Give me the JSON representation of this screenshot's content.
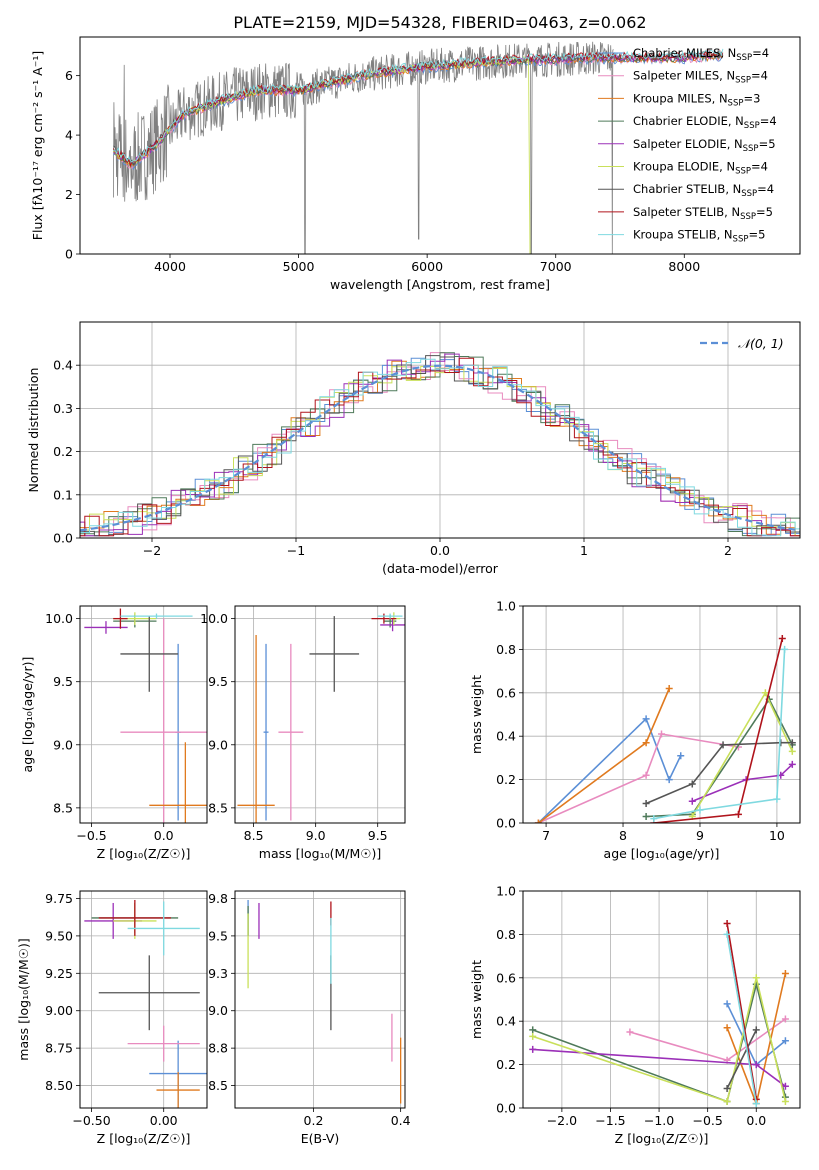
{
  "figure_title": "PLATE=2159, MJD=54328, FIBERID=0463, z=0.062",
  "colors": {
    "grid": "#b0b0b0",
    "spectrum": "#808080",
    "gauss": "#5b8fd6"
  },
  "models": [
    {
      "name": "Chabrier MILES",
      "n": "4",
      "color": "#5b8fd6"
    },
    {
      "name": "Salpeter MILES",
      "n": "4",
      "color": "#e88bbf"
    },
    {
      "name": "Kroupa MILES",
      "n": "3",
      "color": "#e07a1f"
    },
    {
      "name": "Chabrier ELODIE",
      "n": "4",
      "color": "#4f7a5a"
    },
    {
      "name": "Salpeter ELODIE",
      "n": "5",
      "color": "#9b30b8"
    },
    {
      "name": "Kroupa ELODIE",
      "n": "4",
      "color": "#c9e05a"
    },
    {
      "name": "Chabrier STELIB",
      "n": "4",
      "color": "#555555"
    },
    {
      "name": "Salpeter STELIB",
      "n": "5",
      "color": "#b0141c"
    },
    {
      "name": "Kroupa STELIB",
      "n": "5",
      "color": "#7fd9e0"
    }
  ],
  "chart_data": [
    {
      "type": "line",
      "id": "spectrum",
      "title": "PLATE=2159, MJD=54328, FIBERID=0463, z=0.062",
      "xlabel": "wavelength [Angstrom, rest frame]",
      "ylabel": "Flux [fλ10⁻¹⁷ erg cm⁻² s⁻¹ A⁻¹]",
      "xlim": [
        3300,
        8900
      ],
      "ylim": [
        0,
        7.3
      ],
      "xticks": [
        4000,
        5000,
        6000,
        7000,
        8000
      ],
      "yticks": [
        0,
        2,
        4,
        6
      ],
      "grid": false,
      "legend": "upper right",
      "continuum_points": [
        [
          3560,
          3.5
        ],
        [
          3700,
          3.0
        ],
        [
          3900,
          3.7
        ],
        [
          4100,
          4.7
        ],
        [
          4300,
          5.0
        ],
        [
          4500,
          5.3
        ],
        [
          4700,
          5.5
        ],
        [
          5000,
          5.5
        ],
        [
          5200,
          5.7
        ],
        [
          5500,
          6.0
        ],
        [
          5800,
          6.2
        ],
        [
          6000,
          6.3
        ],
        [
          6300,
          6.4
        ],
        [
          6600,
          6.5
        ],
        [
          7000,
          6.55
        ],
        [
          7300,
          6.6
        ],
        [
          7500,
          6.6
        ],
        [
          8000,
          6.6
        ],
        [
          8300,
          6.7
        ]
      ],
      "absorption_lines": [
        [
          5050,
          0
        ],
        [
          5935,
          0.5
        ],
        [
          6810,
          0
        ],
        [
          7440,
          0
        ]
      ]
    },
    {
      "type": "line",
      "id": "residuals",
      "xlabel": "(data-model)/error",
      "ylabel": "Normed distribution",
      "xlim": [
        -2.5,
        2.5
      ],
      "ylim": [
        0,
        0.5
      ],
      "xticks": [
        -2,
        -1,
        0,
        1,
        2
      ],
      "yticks": [
        0.0,
        0.1,
        0.2,
        0.3,
        0.4
      ],
      "grid": true,
      "legend": "upper right",
      "legend_label": "𝒩(0, 1)"
    },
    {
      "type": "scatter",
      "id": "age-vs-Z",
      "xlabel": "Z [log₁₀(Z/Z☉)]",
      "ylabel": "age  [log₁₀(age/yr)]",
      "xlim": [
        -0.58,
        0.3
      ],
      "ylim": [
        8.38,
        10.1
      ],
      "xticks": [
        -0.5,
        0.0
      ],
      "yticks": [
        8.5,
        9.0,
        9.5,
        10.0
      ],
      "grid": true,
      "points": [
        {
          "model": 0,
          "x": 0.1,
          "y": 9.1,
          "xerr": 0.02,
          "yerr": 0.7
        },
        {
          "model": 1,
          "x": 0.0,
          "y": 9.1,
          "xerr": 0.3,
          "yerr": 0.9
        },
        {
          "model": 2,
          "x": 0.15,
          "y": 8.52,
          "xerr": 0.25,
          "yerr": 0.5
        },
        {
          "model": 3,
          "x": -0.2,
          "y": 9.98,
          "xerr": 0.15,
          "yerr": 0.05
        },
        {
          "model": 4,
          "x": -0.4,
          "y": 9.93,
          "xerr": 0.15,
          "yerr": 0.05
        },
        {
          "model": 5,
          "x": -0.2,
          "y": 10.0,
          "xerr": 0.15,
          "yerr": 0.05
        },
        {
          "model": 6,
          "x": -0.1,
          "y": 9.72,
          "xerr": 0.2,
          "yerr": 0.3
        },
        {
          "model": 7,
          "x": -0.3,
          "y": 10.0,
          "xerr": 0.05,
          "yerr": 0.08
        },
        {
          "model": 8,
          "x": -0.05,
          "y": 10.02,
          "xerr": 0.25,
          "yerr": 0.02
        }
      ]
    },
    {
      "type": "scatter",
      "id": "age-vs-mass",
      "xlabel": "mass [log₁₀(M/M☉)]",
      "xlim": [
        8.35,
        9.72
      ],
      "ylim": [
        8.38,
        10.1
      ],
      "xticks": [
        8.5,
        9.0,
        9.5
      ],
      "yticks": [
        8.5,
        9.0,
        9.5,
        10.0
      ],
      "grid": true,
      "points": [
        {
          "model": 0,
          "x": 8.6,
          "y": 9.1,
          "xerr": 0.02,
          "yerr": 0.7
        },
        {
          "model": 1,
          "x": 8.8,
          "y": 9.1,
          "xerr": 0.1,
          "yerr": 0.7
        },
        {
          "model": 2,
          "x": 8.52,
          "y": 8.52,
          "xerr": 0.15,
          "yerr": 1.35
        },
        {
          "model": 3,
          "x": 9.6,
          "y": 9.98,
          "xerr": 0.05,
          "yerr": 0.05
        },
        {
          "model": 4,
          "x": 9.62,
          "y": 9.95,
          "xerr": 0.1,
          "yerr": 0.05
        },
        {
          "model": 5,
          "x": 9.63,
          "y": 10.0,
          "xerr": 0.05,
          "yerr": 0.05
        },
        {
          "model": 6,
          "x": 9.15,
          "y": 9.72,
          "xerr": 0.2,
          "yerr": 0.3
        },
        {
          "model": 7,
          "x": 9.55,
          "y": 10.0,
          "xerr": 0.1,
          "yerr": 0.04
        },
        {
          "model": 8,
          "x": 9.6,
          "y": 10.02,
          "xerr": 0.1,
          "yerr": 0.02
        }
      ]
    },
    {
      "type": "line",
      "id": "mass-weight-vs-age",
      "xlabel": "age  [log₁₀(age/yr)]",
      "ylabel": "mass weight",
      "xlim": [
        6.7,
        10.3
      ],
      "ylim": [
        0,
        1.0
      ],
      "xticks": [
        7,
        8,
        9,
        10
      ],
      "yticks": [
        0.0,
        0.2,
        0.4,
        0.6,
        0.8,
        1.0
      ],
      "grid": true,
      "series": [
        {
          "model": 0,
          "x": [
            6.9,
            8.3,
            8.6,
            8.75
          ],
          "y": [
            0.0,
            0.48,
            0.2,
            0.31
          ]
        },
        {
          "model": 1,
          "x": [
            6.9,
            8.3,
            8.5,
            9.5
          ],
          "y": [
            0.0,
            0.22,
            0.41,
            0.35
          ]
        },
        {
          "model": 2,
          "x": [
            6.9,
            8.3,
            8.6
          ],
          "y": [
            0.0,
            0.37,
            0.62
          ]
        },
        {
          "model": 3,
          "x": [
            8.3,
            8.9,
            9.9,
            10.2
          ],
          "y": [
            0.03,
            0.04,
            0.57,
            0.36
          ]
        },
        {
          "model": 4,
          "x": [
            8.9,
            9.6,
            10.05,
            10.2
          ],
          "y": [
            0.1,
            0.2,
            0.22,
            0.27
          ]
        },
        {
          "model": 5,
          "x": [
            8.9,
            9.85,
            10.2
          ],
          "y": [
            0.03,
            0.6,
            0.33
          ]
        },
        {
          "model": 6,
          "x": [
            8.3,
            8.9,
            9.3,
            10.05,
            10.2
          ],
          "y": [
            0.09,
            0.18,
            0.36,
            0.37,
            0.37
          ]
        },
        {
          "model": 7,
          "x": [
            8.4,
            9.5,
            10.07
          ],
          "y": [
            0.0,
            0.04,
            0.85
          ]
        },
        {
          "model": 8,
          "x": [
            8.4,
            9.0,
            10.0,
            10.1
          ],
          "y": [
            0.02,
            0.06,
            0.11,
            0.8
          ]
        }
      ]
    },
    {
      "type": "scatter",
      "id": "mass-vs-Z",
      "xlabel": "Z [log₁₀(Z/Z☉)]",
      "ylabel": "mass [log₁₀(M/M☉)]",
      "xlim": [
        -0.58,
        0.3
      ],
      "ylim": [
        8.35,
        9.8
      ],
      "xticks": [
        -0.5,
        0.0
      ],
      "yticks": [
        8.5,
        8.75,
        9.0,
        9.25,
        9.5,
        9.75
      ],
      "grid": true,
      "points": [
        {
          "model": 0,
          "x": 0.1,
          "y": 8.58,
          "xerr": 0.2,
          "yerr": 0.22
        },
        {
          "model": 1,
          "x": 0.0,
          "y": 8.78,
          "xerr": 0.25,
          "yerr": 0.12
        },
        {
          "model": 2,
          "x": 0.1,
          "y": 8.47,
          "xerr": 0.15,
          "yerr": 0.12
        },
        {
          "model": 3,
          "x": -0.2,
          "y": 9.62,
          "xerr": 0.3,
          "yerr": 0.1
        },
        {
          "model": 4,
          "x": -0.35,
          "y": 9.6,
          "xerr": 0.2,
          "yerr": 0.12
        },
        {
          "model": 5,
          "x": -0.2,
          "y": 9.6,
          "xerr": 0.15,
          "yerr": 0.12
        },
        {
          "model": 6,
          "x": -0.1,
          "y": 9.12,
          "xerr": 0.35,
          "yerr": 0.25
        },
        {
          "model": 7,
          "x": -0.2,
          "y": 9.62,
          "xerr": 0.25,
          "yerr": 0.12
        },
        {
          "model": 8,
          "x": 0.0,
          "y": 9.55,
          "xerr": 0.25,
          "yerr": 0.18
        }
      ]
    },
    {
      "type": "scatter",
      "id": "mass-vs-EBV",
      "xlabel": "E(B-V)",
      "xlim": [
        0.02,
        0.41
      ],
      "ylim": [
        8.35,
        9.8
      ],
      "xticks": [
        0.2,
        0.4
      ],
      "yticks": [
        8.5,
        8.75,
        9.0,
        9.25,
        9.5,
        9.75
      ],
      "grid": true,
      "points": [
        {
          "model": 0,
          "x": 0.05,
          "y": 9.62,
          "xerr": 0.0,
          "yerr": 0.12
        },
        {
          "model": 1,
          "x": 0.38,
          "y": 8.82,
          "xerr": 0.0,
          "yerr": 0.16
        },
        {
          "model": 2,
          "x": 0.4,
          "y": 8.6,
          "xerr": 0.0,
          "yerr": 0.22
        },
        {
          "model": 3,
          "x": 0.05,
          "y": 9.6,
          "xerr": 0.0,
          "yerr": 0.1
        },
        {
          "model": 4,
          "x": 0.075,
          "y": 9.6,
          "xerr": 0.0,
          "yerr": 0.12
        },
        {
          "model": 5,
          "x": 0.05,
          "y": 9.4,
          "xerr": 0.0,
          "yerr": 0.25
        },
        {
          "model": 6,
          "x": 0.24,
          "y": 9.12,
          "xerr": 0.0,
          "yerr": 0.25
        },
        {
          "model": 7,
          "x": 0.24,
          "y": 9.65,
          "xerr": 0.0,
          "yerr": 0.08
        },
        {
          "model": 8,
          "x": 0.24,
          "y": 9.4,
          "xerr": 0.0,
          "yerr": 0.22
        }
      ]
    },
    {
      "type": "line",
      "id": "mass-weight-vs-Z",
      "xlabel": "Z [log₁₀(Z/Z☉)]",
      "ylabel": "mass weight",
      "xlim": [
        -2.4,
        0.45
      ],
      "ylim": [
        0,
        1.0
      ],
      "xticks": [
        -2.0,
        -1.5,
        -1.0,
        -0.5,
        0.0
      ],
      "yticks": [
        0.0,
        0.2,
        0.4,
        0.6,
        0.8,
        1.0
      ],
      "grid": true,
      "series": [
        {
          "model": 0,
          "x": [
            -0.3,
            0.0,
            0.3
          ],
          "y": [
            0.48,
            0.2,
            0.31
          ]
        },
        {
          "model": 1,
          "x": [
            -1.3,
            -0.3,
            0.3
          ],
          "y": [
            0.35,
            0.22,
            0.41
          ]
        },
        {
          "model": 2,
          "x": [
            -0.3,
            0.0,
            0.3
          ],
          "y": [
            0.37,
            0.02,
            0.62
          ]
        },
        {
          "model": 3,
          "x": [
            -2.3,
            -0.3,
            0.0,
            0.3
          ],
          "y": [
            0.36,
            0.03,
            0.57,
            0.05
          ]
        },
        {
          "model": 4,
          "x": [
            -2.3,
            0.0,
            0.3
          ],
          "y": [
            0.27,
            0.2,
            0.1
          ]
        },
        {
          "model": 5,
          "x": [
            -2.3,
            -0.3,
            0.0,
            0.3
          ],
          "y": [
            0.33,
            0.03,
            0.6,
            0.03
          ]
        },
        {
          "model": 6,
          "x": [
            -0.3,
            0.0
          ],
          "y": [
            0.09,
            0.36
          ]
        },
        {
          "model": 7,
          "x": [
            -0.3,
            0.0
          ],
          "y": [
            0.85,
            0.04
          ]
        },
        {
          "model": 8,
          "x": [
            -0.3,
            0.0
          ],
          "y": [
            0.8,
            0.02
          ]
        }
      ]
    }
  ]
}
